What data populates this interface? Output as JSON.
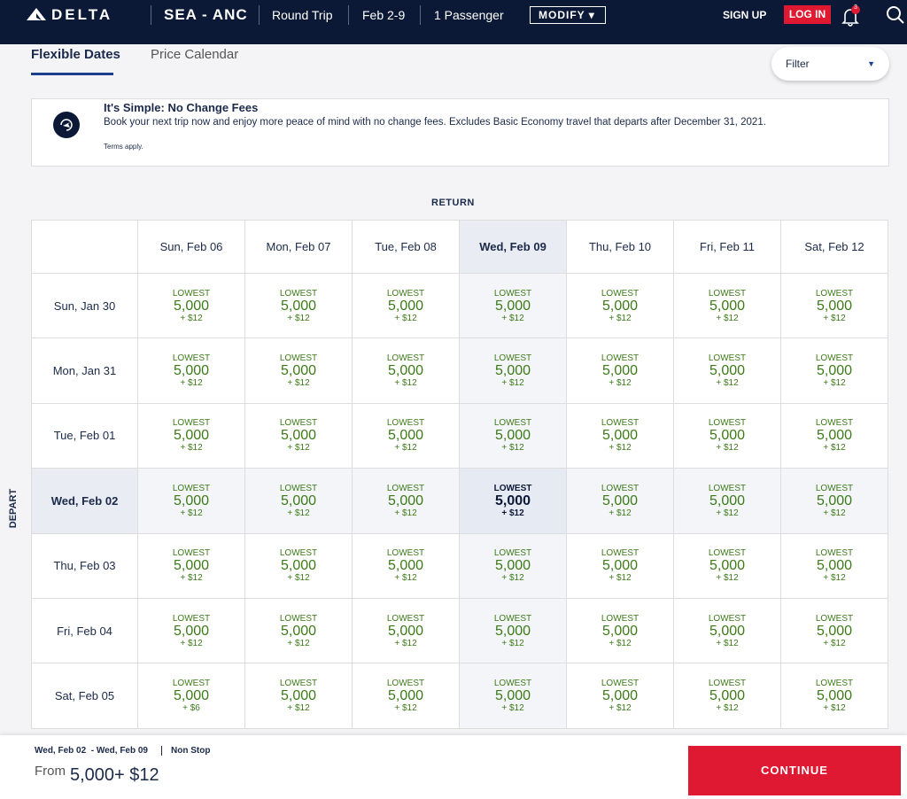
{
  "header": {
    "brand": "DELTA",
    "route": "SEA - ANC",
    "trip_type": "Round Trip",
    "dates": "Feb 2-9",
    "passengers": "1 Passenger",
    "modify": "MODIFY",
    "sign_up": "SIGN UP",
    "log_in": "LOG IN",
    "notifications": "3"
  },
  "tabs": [
    "Flexible Dates",
    "Price Calendar"
  ],
  "filter": "Filter",
  "notice": {
    "title": "It's Simple: No Change Fees",
    "body": "Book your next trip now and enjoy more peace of mind with no change fees. Excludes Basic Economy travel that departs after December 31, 2021.",
    "terms": "Terms apply."
  },
  "grid": {
    "return_label": "RETURN",
    "depart_label": "DEPART",
    "cell_label": "LOWEST",
    "return_dates": [
      {
        "label": "Sun, Feb 06"
      },
      {
        "label": "Mon, Feb 07"
      },
      {
        "label": "Tue, Feb 08"
      },
      {
        "label": "Wed, Feb 09",
        "selected": true
      },
      {
        "label": "Thu, Feb 10"
      },
      {
        "label": "Fri, Feb 11"
      },
      {
        "label": "Sat, Feb 12"
      }
    ],
    "depart_dates": [
      {
        "label": "Sun, Jan 30"
      },
      {
        "label": "Mon, Jan 31"
      },
      {
        "label": "Tue, Feb 01"
      },
      {
        "label": "Wed, Feb 02",
        "selected": true
      },
      {
        "label": "Thu, Feb 03"
      },
      {
        "label": "Fri, Feb 04"
      },
      {
        "label": "Sat, Feb 05"
      }
    ],
    "rows": [
      [
        {
          "miles": "5,000",
          "fee": "+ $12"
        },
        {
          "miles": "5,000",
          "fee": "+ $12"
        },
        {
          "miles": "5,000",
          "fee": "+ $12"
        },
        {
          "miles": "5,000",
          "fee": "+ $12"
        },
        {
          "miles": "5,000",
          "fee": "+ $12"
        },
        {
          "miles": "5,000",
          "fee": "+ $12"
        },
        {
          "miles": "5,000",
          "fee": "+ $12"
        }
      ],
      [
        {
          "miles": "5,000",
          "fee": "+ $12"
        },
        {
          "miles": "5,000",
          "fee": "+ $12"
        },
        {
          "miles": "5,000",
          "fee": "+ $12"
        },
        {
          "miles": "5,000",
          "fee": "+ $12"
        },
        {
          "miles": "5,000",
          "fee": "+ $12"
        },
        {
          "miles": "5,000",
          "fee": "+ $12"
        },
        {
          "miles": "5,000",
          "fee": "+ $12"
        }
      ],
      [
        {
          "miles": "5,000",
          "fee": "+ $12"
        },
        {
          "miles": "5,000",
          "fee": "+ $12"
        },
        {
          "miles": "5,000",
          "fee": "+ $12"
        },
        {
          "miles": "5,000",
          "fee": "+ $12"
        },
        {
          "miles": "5,000",
          "fee": "+ $12"
        },
        {
          "miles": "5,000",
          "fee": "+ $12"
        },
        {
          "miles": "5,000",
          "fee": "+ $12"
        }
      ],
      [
        {
          "miles": "5,000",
          "fee": "+ $12"
        },
        {
          "miles": "5,000",
          "fee": "+ $12"
        },
        {
          "miles": "5,000",
          "fee": "+ $12"
        },
        {
          "miles": "5,000",
          "fee": "+ $12"
        },
        {
          "miles": "5,000",
          "fee": "+ $12"
        },
        {
          "miles": "5,000",
          "fee": "+ $12"
        },
        {
          "miles": "5,000",
          "fee": "+ $12"
        }
      ],
      [
        {
          "miles": "5,000",
          "fee": "+ $12"
        },
        {
          "miles": "5,000",
          "fee": "+ $12"
        },
        {
          "miles": "5,000",
          "fee": "+ $12"
        },
        {
          "miles": "5,000",
          "fee": "+ $12"
        },
        {
          "miles": "5,000",
          "fee": "+ $12"
        },
        {
          "miles": "5,000",
          "fee": "+ $12"
        },
        {
          "miles": "5,000",
          "fee": "+ $12"
        }
      ],
      [
        {
          "miles": "5,000",
          "fee": "+ $12"
        },
        {
          "miles": "5,000",
          "fee": "+ $12"
        },
        {
          "miles": "5,000",
          "fee": "+ $12"
        },
        {
          "miles": "5,000",
          "fee": "+ $12"
        },
        {
          "miles": "5,000",
          "fee": "+ $12"
        },
        {
          "miles": "5,000",
          "fee": "+ $12"
        },
        {
          "miles": "5,000",
          "fee": "+ $12"
        }
      ],
      [
        {
          "miles": "5,000",
          "fee": "+ $6"
        },
        {
          "miles": "5,000",
          "fee": "+ $12"
        },
        {
          "miles": "5,000",
          "fee": "+ $12"
        },
        {
          "miles": "5,000",
          "fee": "+ $12"
        },
        {
          "miles": "5,000",
          "fee": "+ $12"
        },
        {
          "miles": "5,000",
          "fee": "+ $12"
        },
        {
          "miles": "5,000",
          "fee": "+ $12"
        }
      ]
    ]
  },
  "footer": {
    "trip": "Wed, Feb 02  - Wed, Feb 09",
    "stops": "Non Stop",
    "from": "From",
    "price": "5,000+ $12",
    "continue": "CONTINUE"
  }
}
